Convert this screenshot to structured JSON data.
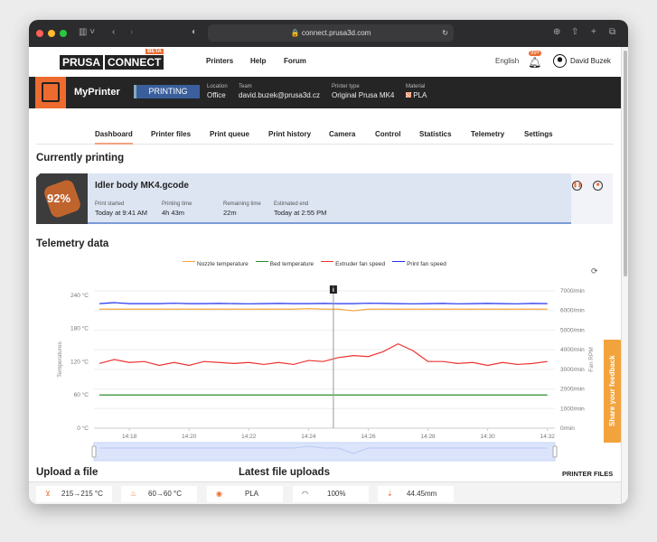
{
  "browser": {
    "url": "connect.prusa3d.com"
  },
  "header": {
    "logo_left": "PRUSA",
    "logo_right": "CONNECT",
    "beta": "BETA",
    "nav": [
      "Printers",
      "Help",
      "Forum"
    ],
    "language": "English",
    "notifications": "99+",
    "user": "David Buzek"
  },
  "printer": {
    "name": "MyPrinter",
    "state": "PRINTING",
    "location_label": "Location",
    "location": "Office",
    "team_label": "Team",
    "team": "david.buzek@prusa3d.cz",
    "type_label": "Printer type",
    "type": "Original Prusa MK4",
    "material_label": "Material",
    "material": "PLA"
  },
  "tabs": [
    {
      "label": "Dashboard",
      "active": true
    },
    {
      "label": "Printer files"
    },
    {
      "label": "Print queue"
    },
    {
      "label": "Print history"
    },
    {
      "label": "Camera"
    },
    {
      "label": "Control"
    },
    {
      "label": "Statistics"
    },
    {
      "label": "Telemetry"
    },
    {
      "label": "Settings"
    }
  ],
  "current": {
    "heading": "Currently printing",
    "progress_label": "92%",
    "progress": 92,
    "file": "Idler body MK4.gcode",
    "fields": [
      {
        "label": "Print started",
        "value": "Today at 9:41 AM"
      },
      {
        "label": "Printing time",
        "value": "4h 43m"
      },
      {
        "label": "Remaining time",
        "value": "22m"
      },
      {
        "label": "Estimated end",
        "value": "Today at 2:55 PM"
      }
    ]
  },
  "telemetry": {
    "heading": "Telemetry data"
  },
  "chart_data": {
    "type": "line",
    "grid": true,
    "legend": "top",
    "ylabel": "Temperatures",
    "y2label": "Fan RPM",
    "ylim": [
      0,
      248
    ],
    "yticks": [
      "0 °C",
      "60 °C",
      "120 °C",
      "180 °C",
      "240 °C"
    ],
    "ytick_values": [
      0,
      60,
      120,
      180,
      240
    ],
    "y2lim": [
      0,
      7000
    ],
    "y2ticks": [
      "0/min",
      "1000/min",
      "2000/min",
      "3000/min",
      "4000/min",
      "5000/min",
      "6000/min",
      "7000/min"
    ],
    "y2tick_values": [
      0,
      1000,
      2000,
      3000,
      4000,
      5000,
      6000,
      7000
    ],
    "xticks": [
      "14:18",
      "14:20",
      "14:22",
      "14:24",
      "14:26",
      "14:28",
      "14:30",
      "14:32"
    ],
    "x_range": [
      "14:17",
      "14:32"
    ],
    "cursor": "14:24:50",
    "cursor_icon": "i",
    "x": [
      "14:17:00",
      "14:17:30",
      "14:18:00",
      "14:18:30",
      "14:19:00",
      "14:19:30",
      "14:20:00",
      "14:20:30",
      "14:21:00",
      "14:21:30",
      "14:22:00",
      "14:22:30",
      "14:23:00",
      "14:23:30",
      "14:24:00",
      "14:24:30",
      "14:25:00",
      "14:25:30",
      "14:26:00",
      "14:26:30",
      "14:27:00",
      "14:27:30",
      "14:28:00",
      "14:28:30",
      "14:29:00",
      "14:29:30",
      "14:30:00",
      "14:30:30",
      "14:31:00",
      "14:31:30",
      "14:32:00"
    ],
    "series": [
      {
        "name": "Nozzle temperature",
        "axis": "left",
        "color": "#f5a33a",
        "values": [
          215,
          215,
          215,
          215,
          215,
          215,
          215,
          215,
          215,
          215,
          215,
          215,
          215,
          215,
          216,
          215,
          215,
          212,
          215,
          215,
          215,
          215,
          215,
          215,
          215,
          215,
          215,
          215,
          215,
          215,
          215
        ]
      },
      {
        "name": "Bed temperature",
        "axis": "left",
        "color": "#2e8b2e",
        "values": [
          60,
          60,
          60,
          60,
          60,
          60,
          60,
          60,
          60,
          60,
          60,
          60,
          60,
          60,
          60,
          60,
          60,
          60,
          60,
          60,
          60,
          60,
          60,
          60,
          60,
          60,
          60,
          60,
          60,
          60,
          60
        ]
      },
      {
        "name": "Extruder fan speed",
        "axis": "right",
        "color": "#ee3333",
        "values": [
          3300,
          3500,
          3350,
          3400,
          3200,
          3350,
          3200,
          3400,
          3350,
          3300,
          3350,
          3250,
          3350,
          3250,
          3450,
          3400,
          3600,
          3700,
          3650,
          3900,
          4300,
          3950,
          3400,
          3400,
          3300,
          3350,
          3200,
          3350,
          3250,
          3300,
          3400
        ]
      },
      {
        "name": "Print fan speed",
        "axis": "right",
        "color": "#2233ee",
        "values": [
          6350,
          6400,
          6350,
          6350,
          6350,
          6370,
          6350,
          6350,
          6360,
          6350,
          6340,
          6350,
          6360,
          6350,
          6350,
          6360,
          6350,
          6350,
          6370,
          6360,
          6350,
          6340,
          6350,
          6360,
          6340,
          6350,
          6360,
          6350,
          6340,
          6360,
          6350
        ]
      }
    ]
  },
  "sections": {
    "upload": "Upload a file",
    "latest": "Latest file uploads",
    "printer_files": "PRINTER FILES"
  },
  "feedback": "Share your feedback",
  "status": {
    "nozzle": "215→215 °C",
    "bed": "60→60 °C",
    "material": "PLA",
    "speed": "100%",
    "z": "44.45mm"
  },
  "colors": {
    "accent": "#ed6b2e",
    "state": "#3a5f9c"
  }
}
